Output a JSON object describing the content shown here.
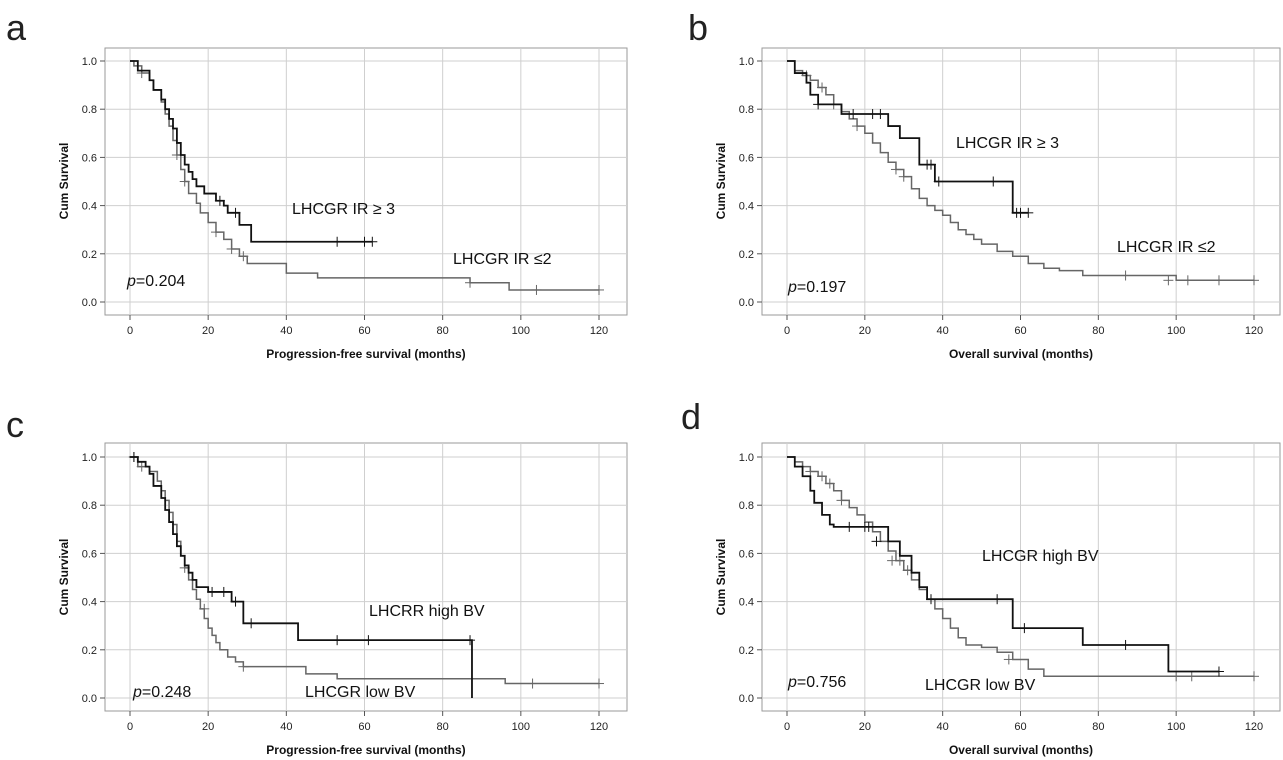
{
  "chart_data": [
    {
      "panel": "a",
      "type": "line",
      "xlabel": "Progression-free survival (months)",
      "ylabel": "Cum Survival",
      "xlim": [
        0,
        120
      ],
      "ylim": [
        0.0,
        1.0
      ],
      "xticks": [
        0,
        20,
        40,
        60,
        80,
        100,
        120
      ],
      "yticks": [
        0.0,
        0.2,
        0.4,
        0.6,
        0.8,
        1.0
      ],
      "grid": true,
      "annotation_p": "p",
      "annotation_rest": "=0.204",
      "series": [
        {
          "name": "LHCGR IR ≥ 3",
          "color": "#111111",
          "step_x": [
            0,
            2,
            4,
            5,
            6,
            8,
            9,
            10,
            11,
            12,
            13,
            14,
            15,
            16,
            17,
            19,
            22,
            24,
            25,
            28,
            31,
            62
          ],
          "step_y": [
            1.0,
            0.96,
            0.96,
            0.92,
            0.88,
            0.84,
            0.8,
            0.76,
            0.72,
            0.66,
            0.61,
            0.57,
            0.54,
            0.51,
            0.48,
            0.45,
            0.42,
            0.4,
            0.37,
            0.32,
            0.25,
            0.25
          ],
          "censor_x": [
            23,
            27,
            53,
            60,
            62
          ],
          "censor_y": [
            0.42,
            0.37,
            0.25,
            0.25,
            0.25
          ]
        },
        {
          "name": "LHCGR IR ≤2",
          "color": "#666666",
          "step_x": [
            0,
            1,
            3,
            5,
            6,
            8,
            9,
            10,
            11,
            12,
            13,
            14,
            15,
            17,
            18,
            20,
            22,
            24,
            26,
            28,
            30,
            33,
            40,
            48,
            87,
            97,
            120
          ],
          "step_y": [
            1.0,
            0.98,
            0.95,
            0.92,
            0.88,
            0.83,
            0.78,
            0.73,
            0.67,
            0.61,
            0.55,
            0.5,
            0.45,
            0.41,
            0.37,
            0.33,
            0.29,
            0.26,
            0.22,
            0.19,
            0.16,
            0.16,
            0.12,
            0.1,
            0.08,
            0.05,
            0.05
          ],
          "censor_x": [
            3,
            12,
            14,
            22,
            26,
            29,
            87,
            104,
            120
          ],
          "censor_y": [
            0.95,
            0.61,
            0.5,
            0.29,
            0.22,
            0.19,
            0.08,
            0.05,
            0.05
          ]
        }
      ]
    },
    {
      "panel": "b",
      "type": "line",
      "xlabel": "Overall survival (months)",
      "ylabel": "Cum Survival",
      "xlim": [
        0,
        120
      ],
      "ylim": [
        0.0,
        1.0
      ],
      "xticks": [
        0,
        20,
        40,
        60,
        80,
        100,
        120
      ],
      "yticks": [
        0.0,
        0.2,
        0.4,
        0.6,
        0.8,
        1.0
      ],
      "grid": true,
      "annotation_p": "p",
      "annotation_rest": "=0.197",
      "series": [
        {
          "name": "LHCGR IR ≥ 3",
          "color": "#111111",
          "step_x": [
            0,
            2,
            5,
            6,
            8,
            10,
            14,
            18,
            20,
            26,
            29,
            34,
            38,
            58,
            62
          ],
          "step_y": [
            1.0,
            0.95,
            0.91,
            0.86,
            0.82,
            0.82,
            0.78,
            0.78,
            0.78,
            0.73,
            0.68,
            0.57,
            0.5,
            0.37,
            0.37
          ],
          "censor_x": [
            8,
            17,
            22,
            24,
            36,
            37,
            39,
            53,
            59,
            60,
            62
          ],
          "censor_y": [
            0.82,
            0.78,
            0.78,
            0.78,
            0.57,
            0.57,
            0.5,
            0.5,
            0.37,
            0.37,
            0.37
          ]
        },
        {
          "name": "LHCGR IR ≤2",
          "color": "#666666",
          "step_x": [
            0,
            2,
            4,
            6,
            8,
            10,
            12,
            14,
            16,
            18,
            20,
            22,
            24,
            26,
            28,
            30,
            32,
            34,
            36,
            38,
            40,
            42,
            44,
            46,
            48,
            50,
            54,
            58,
            62,
            66,
            70,
            76,
            100,
            120
          ],
          "step_y": [
            1.0,
            0.96,
            0.94,
            0.92,
            0.89,
            0.86,
            0.82,
            0.79,
            0.76,
            0.73,
            0.7,
            0.66,
            0.62,
            0.58,
            0.55,
            0.52,
            0.47,
            0.43,
            0.4,
            0.38,
            0.36,
            0.33,
            0.3,
            0.28,
            0.26,
            0.24,
            0.21,
            0.19,
            0.16,
            0.14,
            0.13,
            0.11,
            0.09,
            0.09
          ],
          "censor_x": [
            5,
            9,
            12,
            18,
            28,
            30,
            87,
            98,
            103,
            111,
            120
          ],
          "censor_y": [
            0.94,
            0.89,
            0.82,
            0.73,
            0.55,
            0.52,
            0.11,
            0.09,
            0.09,
            0.09,
            0.09
          ]
        }
      ]
    },
    {
      "panel": "c",
      "type": "line",
      "xlabel": "Progression-free survival (months)",
      "ylabel": "Cum Survival",
      "xlim": [
        0,
        120
      ],
      "ylim": [
        0.0,
        1.0
      ],
      "xticks": [
        0,
        20,
        40,
        60,
        80,
        100,
        120
      ],
      "yticks": [
        0.0,
        0.2,
        0.4,
        0.6,
        0.8,
        1.0
      ],
      "grid": true,
      "annotation_p": "p",
      "annotation_rest": "=0.248",
      "series": [
        {
          "name": "LHCRR high  BV",
          "color": "#111111",
          "step_x": [
            0,
            2,
            4,
            5,
            6,
            8,
            9,
            10,
            11,
            12,
            13,
            14,
            15,
            16,
            17,
            20,
            26,
            29,
            43,
            87.5,
            87.5
          ],
          "step_y": [
            1.0,
            0.98,
            0.96,
            0.93,
            0.88,
            0.83,
            0.78,
            0.73,
            0.68,
            0.63,
            0.59,
            0.55,
            0.52,
            0.49,
            0.46,
            0.44,
            0.4,
            0.31,
            0.24,
            0.24,
            0.0
          ],
          "censor_x": [
            1,
            21,
            24,
            27,
            31,
            53,
            61,
            87
          ],
          "censor_y": [
            1.0,
            0.44,
            0.44,
            0.4,
            0.31,
            0.24,
            0.24,
            0.24
          ]
        },
        {
          "name": "LHCGR low BV",
          "color": "#666666",
          "step_x": [
            0,
            2,
            5,
            7,
            8,
            9,
            10,
            11,
            12,
            13,
            14,
            15,
            16,
            17,
            18,
            19,
            20,
            21,
            22,
            23,
            25,
            27,
            29,
            45,
            53,
            96,
            120
          ],
          "step_y": [
            1.0,
            0.96,
            0.94,
            0.9,
            0.86,
            0.82,
            0.77,
            0.72,
            0.65,
            0.59,
            0.54,
            0.49,
            0.45,
            0.41,
            0.37,
            0.33,
            0.29,
            0.26,
            0.23,
            0.2,
            0.17,
            0.15,
            0.13,
            0.1,
            0.08,
            0.06,
            0.06
          ],
          "censor_x": [
            1,
            3,
            14,
            19,
            29,
            103,
            120
          ],
          "censor_y": [
            1.0,
            0.96,
            0.54,
            0.37,
            0.13,
            0.06,
            0.06
          ]
        }
      ]
    },
    {
      "panel": "d",
      "type": "line",
      "xlabel": "Overall survival (months)",
      "ylabel": "Cum Survival",
      "xlim": [
        0,
        120
      ],
      "ylim": [
        0.0,
        1.0
      ],
      "xticks": [
        0,
        20,
        40,
        60,
        80,
        100,
        120
      ],
      "yticks": [
        0.0,
        0.2,
        0.4,
        0.6,
        0.8,
        1.0
      ],
      "grid": true,
      "annotation_p": "p",
      "annotation_rest": "=0.756",
      "series": [
        {
          "name": "LHCGR high  BV",
          "color": "#111111",
          "step_x": [
            0,
            2,
            4,
            6,
            7,
            9,
            11,
            12,
            22,
            26,
            29,
            32,
            34,
            36,
            38,
            58,
            76,
            98,
            111
          ],
          "step_y": [
            1.0,
            0.96,
            0.92,
            0.86,
            0.81,
            0.76,
            0.72,
            0.71,
            0.71,
            0.65,
            0.59,
            0.52,
            0.46,
            0.41,
            0.41,
            0.29,
            0.22,
            0.11,
            0.11
          ],
          "censor_x": [
            16,
            20,
            21,
            23,
            37,
            54,
            61,
            87,
            111
          ],
          "censor_y": [
            0.71,
            0.71,
            0.71,
            0.65,
            0.41,
            0.41,
            0.29,
            0.22,
            0.11
          ]
        },
        {
          "name": "LHCGR low BV",
          "color": "#666666",
          "step_x": [
            0,
            2,
            4,
            6,
            8,
            10,
            12,
            14,
            16,
            18,
            20,
            22,
            24,
            26,
            28,
            30,
            32,
            34,
            36,
            38,
            40,
            42,
            44,
            46,
            50,
            54,
            58,
            62,
            66,
            120
          ],
          "step_y": [
            1.0,
            0.98,
            0.96,
            0.94,
            0.92,
            0.89,
            0.86,
            0.82,
            0.79,
            0.76,
            0.73,
            0.69,
            0.65,
            0.61,
            0.57,
            0.53,
            0.49,
            0.45,
            0.41,
            0.37,
            0.33,
            0.29,
            0.25,
            0.22,
            0.21,
            0.19,
            0.16,
            0.12,
            0.09,
            0.09
          ],
          "censor_x": [
            6,
            9,
            11,
            14,
            27,
            29,
            31,
            57,
            100,
            104,
            120
          ],
          "censor_y": [
            0.94,
            0.92,
            0.89,
            0.82,
            0.57,
            0.57,
            0.53,
            0.16,
            0.09,
            0.09,
            0.09
          ]
        }
      ]
    }
  ]
}
